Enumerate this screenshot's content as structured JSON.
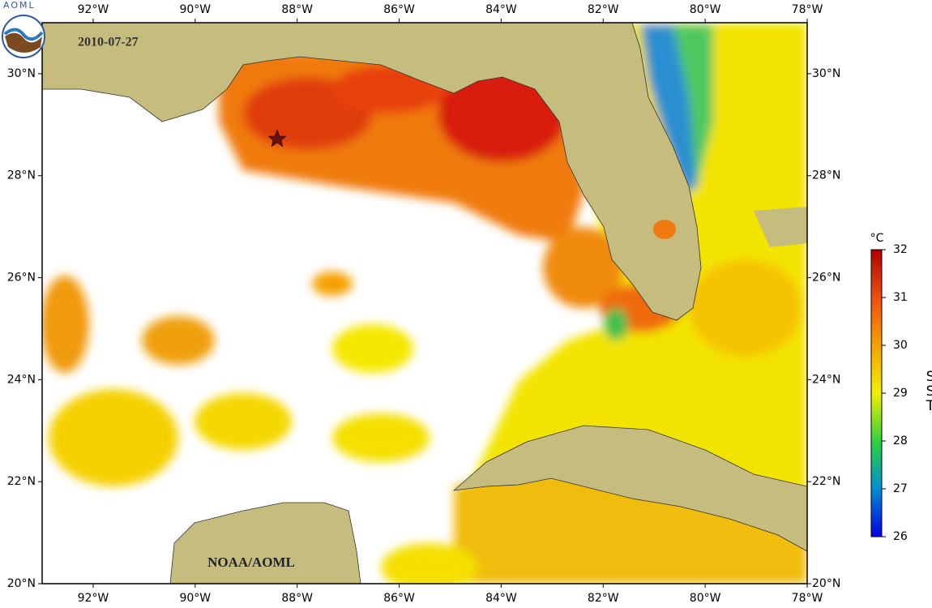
{
  "map": {
    "date": "2010-07-27",
    "credit": "NOAA/AOML",
    "logo_text": "AOML",
    "xlim": [
      -93,
      -78
    ],
    "ylim": [
      20,
      31
    ],
    "xticks": [
      {
        "value": -92,
        "label": "92°W"
      },
      {
        "value": -90,
        "label": "90°W"
      },
      {
        "value": -88,
        "label": "88°W"
      },
      {
        "value": -86,
        "label": "86°W"
      },
      {
        "value": -84,
        "label": "84°W"
      },
      {
        "value": -82,
        "label": "82°W"
      },
      {
        "value": -80,
        "label": "80°W"
      },
      {
        "value": -78,
        "label": "78°W"
      }
    ],
    "yticks": [
      {
        "value": 20,
        "label": "20°N"
      },
      {
        "value": 22,
        "label": "22°N"
      },
      {
        "value": 24,
        "label": "24°N"
      },
      {
        "value": 26,
        "label": "26°N"
      },
      {
        "value": 28,
        "label": "28°N"
      },
      {
        "value": 30,
        "label": "30°N"
      }
    ]
  },
  "colorbar": {
    "unit": "°C",
    "label": "SST",
    "lim": [
      26,
      32
    ],
    "ticks": [
      26,
      27,
      28,
      29,
      30,
      31,
      32
    ]
  }
}
